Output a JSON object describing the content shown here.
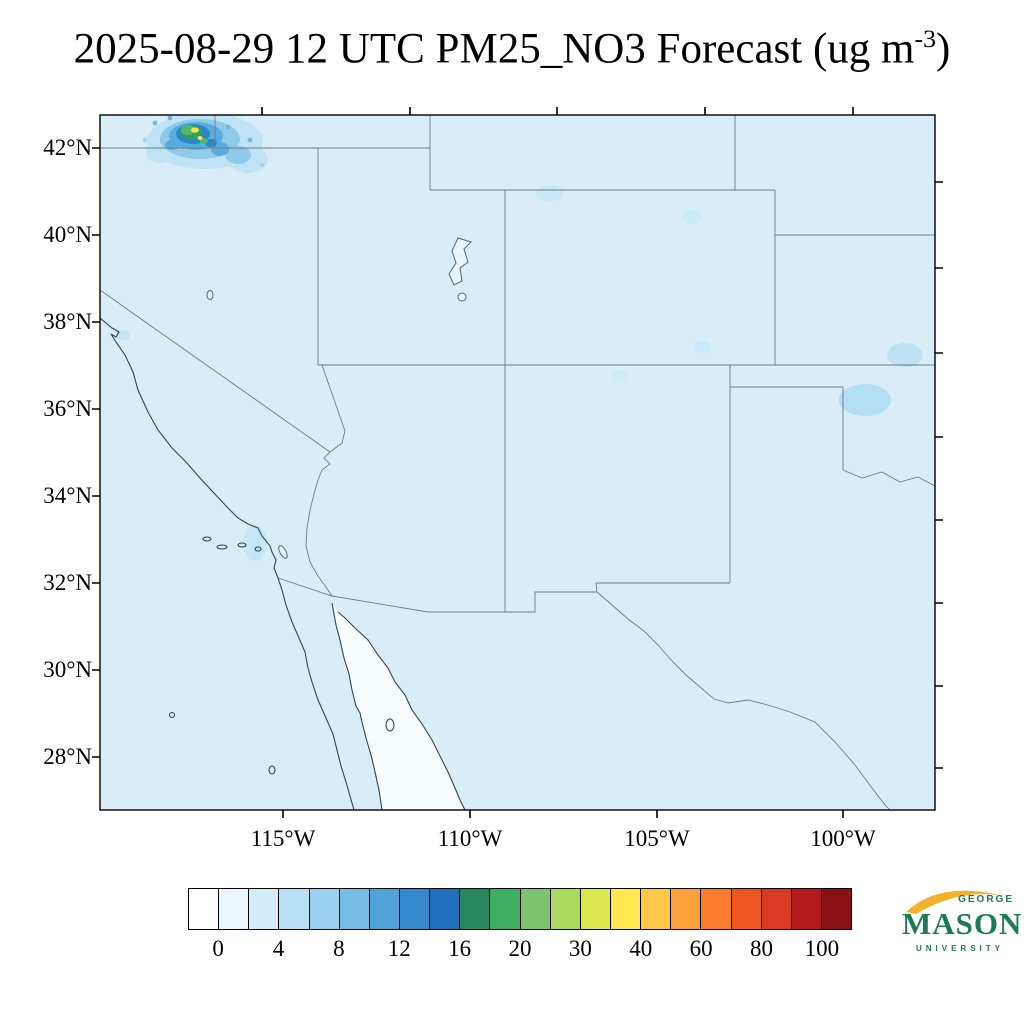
{
  "title": {
    "prefix": "2025-08-29 12 UTC PM25_NO3 Forecast (ug m",
    "superscript": "-3",
    "suffix": ")"
  },
  "axes": {
    "lat": [
      "42°N",
      "40°N",
      "38°N",
      "36°N",
      "34°N",
      "32°N",
      "30°N",
      "28°N"
    ],
    "lon": [
      "115°W",
      "110°W",
      "105°W",
      "100°W"
    ]
  },
  "map": {
    "background": "#d9edf8",
    "ocean_gulf": "#f7fcff",
    "state_border_color": "#6b7b85",
    "coast_color": "#33444d"
  },
  "colorbar": {
    "labels": [
      "0",
      "4",
      "8",
      "12",
      "16",
      "20",
      "30",
      "40",
      "60",
      "80",
      "100"
    ],
    "colors": [
      "#ffffff",
      "#e9f6fc",
      "#d3ecf9",
      "#b8e1f5",
      "#99d2ee",
      "#74bde5",
      "#4fa3d9",
      "#3389cb",
      "#1f6fbb",
      "#27875f",
      "#3fae62",
      "#7ac56e",
      "#abd95e",
      "#d9e94e",
      "#fce84e",
      "#fdc848",
      "#fda13c",
      "#f97b2e",
      "#ee5621",
      "#d93a20",
      "#b51a1a",
      "#8a1113"
    ]
  },
  "logo": {
    "line1": "GEORGE",
    "line2": "MASON",
    "line3": "UNIVERSITY",
    "green": "#1e7a52",
    "gold": "#f3b229"
  },
  "chart_data": {
    "type": "heatmap",
    "title": "2025-08-29 12 UTC PM25_NO3 Forecast (ug m-3)",
    "variable": "PM25_NO3 (particulate nitrate in PM2.5)",
    "units": "ug m-3",
    "region": "Southwestern United States and northern Mexico",
    "lat_ticks": [
      "42°N",
      "40°N",
      "38°N",
      "36°N",
      "34°N",
      "32°N",
      "30°N",
      "28°N"
    ],
    "lon_ticks": [
      "115°W",
      "110°W",
      "105°W",
      "100°W"
    ],
    "colorbar_boundaries": [
      0,
      2,
      4,
      6,
      8,
      10,
      12,
      14,
      16,
      18,
      20,
      25,
      30,
      35,
      40,
      50,
      60,
      70,
      80,
      90,
      100
    ],
    "colorbar_labeled_ticks": [
      0,
      4,
      8,
      12,
      16,
      20,
      30,
      40,
      60,
      80,
      100
    ],
    "grid": false,
    "legend_position": "bottom horizontal colorbar",
    "field_summary": [
      {
        "feature": "background",
        "value_ug_m3": "0-2",
        "extent": "nearly the entire domain"
      },
      {
        "feature": "plume",
        "location": "northwest corner near the Oregon/Idaho/Nevada border (~42N, 117-118W)",
        "peak_value_ug_m3": "20-40",
        "appearance": "blue halo, green core, small yellow maxima"
      },
      {
        "feature": "weak enhancements",
        "value_ug_m3": "1-4",
        "locations": [
          "central Wyoming",
          "western Kansas edge",
          "southeast Colorado edge",
          "southern California coast",
          "near Great Salt Lake"
        ]
      }
    ]
  }
}
